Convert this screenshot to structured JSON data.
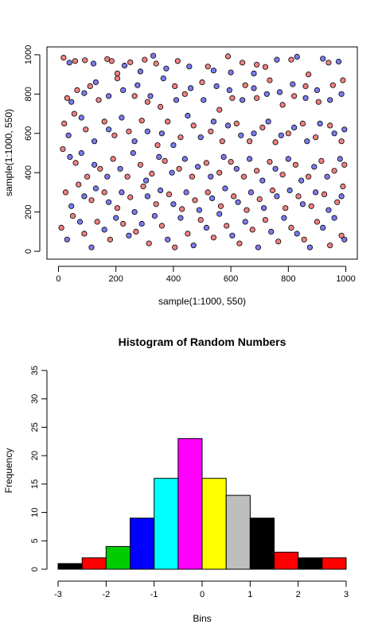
{
  "chart_data": [
    {
      "type": "scatter",
      "title": "",
      "xlabel": "sample(1:1000, 550)",
      "ylabel": "sample(1:1000, 550)",
      "xlim": [
        -40,
        1040
      ],
      "ylim": [
        -40,
        1040
      ],
      "x_ticks": [
        0,
        200,
        400,
        600,
        800,
        1000
      ],
      "y_ticks": [
        0,
        200,
        400,
        600,
        800,
        1000
      ],
      "n_points": 550,
      "point_colors": [
        "#f08080",
        "#7b7bf0"
      ],
      "point_edge_color": "#000000",
      "grid": false,
      "series": [
        {
          "values": [
            [
              18,
              985
            ],
            [
              58,
              968
            ],
            [
              92,
              972
            ],
            [
              170,
              978
            ],
            [
              185,
              968
            ],
            [
              205,
              905
            ],
            [
              250,
              962
            ],
            [
              300,
              975
            ],
            [
              340,
              955
            ],
            [
              415,
              968
            ],
            [
              520,
              940
            ],
            [
              590,
              992
            ],
            [
              640,
              960
            ],
            [
              690,
              950
            ],
            [
              720,
              938
            ],
            [
              810,
              975
            ],
            [
              870,
              900
            ],
            [
              940,
              960
            ],
            [
              30,
              780
            ],
            [
              65,
              820
            ],
            [
              110,
              840
            ],
            [
              140,
              770
            ],
            [
              205,
              880
            ],
            [
              265,
              790
            ],
            [
              310,
              760
            ],
            [
              355,
              735
            ],
            [
              405,
              840
            ],
            [
              440,
              800
            ],
            [
              500,
              860
            ],
            [
              560,
              720
            ],
            [
              605,
              780
            ],
            [
              650,
              845
            ],
            [
              690,
              780
            ],
            [
              735,
              870
            ],
            [
              780,
              745
            ],
            [
              820,
              790
            ],
            [
              860,
              840
            ],
            [
              905,
              760
            ],
            [
              955,
              845
            ],
            [
              990,
              870
            ],
            [
              20,
              650
            ],
            [
              55,
              700
            ],
            [
              95,
              620
            ],
            [
              160,
              660
            ],
            [
              195,
              590
            ],
            [
              245,
              610
            ],
            [
              290,
              665
            ],
            [
              345,
              540
            ],
            [
              380,
              660
            ],
            [
              425,
              580
            ],
            [
              470,
              640
            ],
            [
              530,
              610
            ],
            [
              570,
              560
            ],
            [
              620,
              650
            ],
            [
              665,
              560
            ],
            [
              710,
              630
            ],
            [
              755,
              555
            ],
            [
              800,
              600
            ],
            [
              850,
              650
            ],
            [
              895,
              580
            ],
            [
              945,
              640
            ],
            [
              985,
              560
            ],
            [
              15,
              520
            ],
            [
              60,
              450
            ],
            [
              100,
              380
            ],
            [
              145,
              420
            ],
            [
              190,
              470
            ],
            [
              240,
              380
            ],
            [
              285,
              440
            ],
            [
              325,
              395
            ],
            [
              370,
              460
            ],
            [
              420,
              420
            ],
            [
              465,
              380
            ],
            [
              515,
              450
            ],
            [
              560,
              400
            ],
            [
              600,
              455
            ],
            [
              645,
              380
            ],
            [
              690,
              410
            ],
            [
              735,
              455
            ],
            [
              780,
              390
            ],
            [
              825,
              440
            ],
            [
              870,
              380
            ],
            [
              915,
              460
            ],
            [
              960,
              410
            ],
            [
              995,
              440
            ],
            [
              25,
              300
            ],
            [
              70,
              340
            ],
            [
              115,
              260
            ],
            [
              160,
              300
            ],
            [
              205,
              220
            ],
            [
              250,
              275
            ],
            [
              295,
              330
            ],
            [
              340,
              240
            ],
            [
              385,
              290
            ],
            [
              430,
              215
            ],
            [
              475,
              260
            ],
            [
              520,
              300
            ],
            [
              565,
              230
            ],
            [
              610,
              280
            ],
            [
              655,
              210
            ],
            [
              700,
              265
            ],
            [
              745,
              310
            ],
            [
              790,
              220
            ],
            [
              835,
              280
            ],
            [
              880,
              230
            ],
            [
              925,
              290
            ],
            [
              970,
              250
            ],
            [
              990,
              330
            ],
            [
              10,
              120
            ],
            [
              50,
              180
            ],
            [
              90,
              90
            ],
            [
              135,
              150
            ],
            [
              180,
              60
            ],
            [
              225,
              140
            ],
            [
              270,
              100
            ],
            [
              315,
              40
            ],
            [
              360,
              130
            ],
            [
              405,
              20
            ],
            [
              450,
              90
            ],
            [
              495,
              160
            ],
            [
              540,
              70
            ],
            [
              585,
              130
            ],
            [
              630,
              40
            ],
            [
              675,
              110
            ],
            [
              720,
              160
            ],
            [
              765,
              50
            ],
            [
              810,
              120
            ],
            [
              855,
              60
            ],
            [
              900,
              150
            ],
            [
              945,
              30
            ],
            [
              985,
              80
            ]
          ]
        },
        {
          "values": [
            [
              38,
              960
            ],
            [
              122,
              955
            ],
            [
              230,
              945
            ],
            [
              285,
              915
            ],
            [
              330,
              995
            ],
            [
              375,
              930
            ],
            [
              455,
              940
            ],
            [
              540,
              920
            ],
            [
              600,
              910
            ],
            [
              680,
              905
            ],
            [
              760,
              975
            ],
            [
              830,
              990
            ],
            [
              920,
              980
            ],
            [
              975,
              965
            ],
            [
              45,
              760
            ],
            [
              90,
              805
            ],
            [
              130,
              860
            ],
            [
              175,
              790
            ],
            [
              225,
              820
            ],
            [
              275,
              845
            ],
            [
              320,
              790
            ],
            [
              365,
              880
            ],
            [
              410,
              770
            ],
            [
              460,
              830
            ],
            [
              505,
              770
            ],
            [
              550,
              840
            ],
            [
              595,
              820
            ],
            [
              640,
              770
            ],
            [
              680,
              830
            ],
            [
              725,
              800
            ],
            [
              770,
              810
            ],
            [
              815,
              850
            ],
            [
              860,
              780
            ],
            [
              900,
              820
            ],
            [
              945,
              770
            ],
            [
              985,
              800
            ],
            [
              35,
              590
            ],
            [
              80,
              680
            ],
            [
              125,
              560
            ],
            [
              175,
              620
            ],
            [
              220,
              680
            ],
            [
              265,
              560
            ],
            [
              310,
              610
            ],
            [
              360,
              600
            ],
            [
              400,
              540
            ],
            [
              450,
              690
            ],
            [
              495,
              580
            ],
            [
              540,
              660
            ],
            [
              590,
              640
            ],
            [
              635,
              590
            ],
            [
              680,
              600
            ],
            [
              730,
              660
            ],
            [
              775,
              590
            ],
            [
              820,
              630
            ],
            [
              865,
              560
            ],
            [
              910,
              650
            ],
            [
              960,
              600
            ],
            [
              995,
              620
            ],
            [
              40,
              480
            ],
            [
              80,
              500
            ],
            [
              125,
              440
            ],
            [
              170,
              380
            ],
            [
              215,
              420
            ],
            [
              260,
              500
            ],
            [
              305,
              360
            ],
            [
              350,
              480
            ],
            [
              395,
              400
            ],
            [
              440,
              470
            ],
            [
              485,
              430
            ],
            [
              530,
              380
            ],
            [
              575,
              480
            ],
            [
              620,
              420
            ],
            [
              665,
              470
            ],
            [
              710,
              360
            ],
            [
              755,
              420
            ],
            [
              800,
              470
            ],
            [
              845,
              360
            ],
            [
              890,
              430
            ],
            [
              935,
              380
            ],
            [
              980,
              470
            ],
            [
              45,
              230
            ],
            [
              90,
              280
            ],
            [
              130,
              320
            ],
            [
              175,
              250
            ],
            [
              220,
              300
            ],
            [
              265,
              200
            ],
            [
              310,
              280
            ],
            [
              355,
              310
            ],
            [
              400,
              240
            ],
            [
              445,
              300
            ],
            [
              490,
              210
            ],
            [
              535,
              270
            ],
            [
              580,
              320
            ],
            [
              625,
              250
            ],
            [
              670,
              300
            ],
            [
              715,
              220
            ],
            [
              760,
              280
            ],
            [
              805,
              310
            ],
            [
              850,
              240
            ],
            [
              895,
              300
            ],
            [
              940,
              210
            ],
            [
              985,
              280
            ],
            [
              30,
              60
            ],
            [
              75,
              150
            ],
            [
              115,
              20
            ],
            [
              160,
              110
            ],
            [
              200,
              170
            ],
            [
              245,
              80
            ],
            [
              290,
              140
            ],
            [
              335,
              180
            ],
            [
              380,
              60
            ],
            [
              425,
              170
            ],
            [
              470,
              30
            ],
            [
              515,
              120
            ],
            [
              560,
              190
            ],
            [
              605,
              80
            ],
            [
              650,
              150
            ],
            [
              695,
              20
            ],
            [
              740,
              100
            ],
            [
              785,
              170
            ],
            [
              830,
              90
            ],
            [
              875,
              20
            ],
            [
              920,
              120
            ],
            [
              960,
              170
            ],
            [
              995,
              60
            ]
          ]
        }
      ]
    },
    {
      "type": "bar",
      "title": "Histogram of Random Numbers",
      "xlabel": "Bins",
      "ylabel": "Frequency",
      "xlim": [
        -3,
        3
      ],
      "ylim": [
        0,
        35
      ],
      "x_ticks": [
        -3,
        -2,
        -1,
        0,
        1,
        2,
        3
      ],
      "y_ticks": [
        0,
        5,
        10,
        15,
        20,
        25,
        30,
        35
      ],
      "bin_edges": [
        -3,
        -2.5,
        -2,
        -1.5,
        -1,
        -0.5,
        0,
        0.5,
        1,
        1.5,
        2,
        2.5,
        3
      ],
      "values": [
        1,
        2,
        4,
        9,
        16,
        23,
        16,
        13,
        9,
        3,
        2,
        2
      ],
      "colors": [
        "#000000",
        "#ff0000",
        "#00cd00",
        "#0000ff",
        "#00ffff",
        "#ff00ff",
        "#ffff00",
        "#bebebe",
        "#000000",
        "#ff0000",
        "#000000",
        "#ff0000"
      ],
      "grid": false
    }
  ]
}
